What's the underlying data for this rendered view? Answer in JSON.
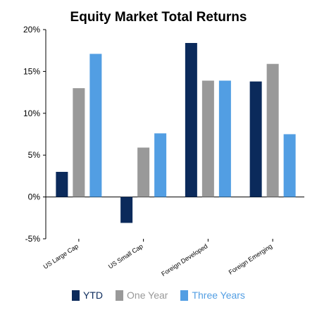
{
  "chart_data": {
    "type": "bar",
    "title": "Equity Market Total Returns",
    "categories": [
      "US Large Cap",
      "US Small Cap",
      "Foreign Developed",
      "Foreign Emerging"
    ],
    "series": [
      {
        "name": "YTD",
        "color": "#0b2a5b",
        "values": [
          3.0,
          -3.1,
          18.4,
          13.8
        ]
      },
      {
        "name": "One Year",
        "color": "#999999",
        "values": [
          13.0,
          5.9,
          13.9,
          15.9
        ]
      },
      {
        "name": "Three Years",
        "color": "#529ee3",
        "values": [
          17.1,
          7.6,
          13.9,
          7.5
        ]
      }
    ],
    "ylim": [
      -5,
      20
    ],
    "yticks": [
      -5,
      0,
      5,
      10,
      15,
      20
    ],
    "ytick_labels": [
      "-5%",
      "0%",
      "5%",
      "10%",
      "15%",
      "20%"
    ],
    "grid": false,
    "legend_position": "bottom"
  }
}
